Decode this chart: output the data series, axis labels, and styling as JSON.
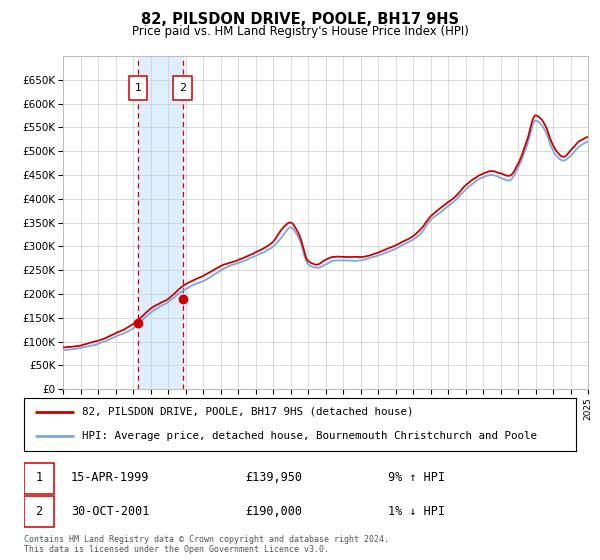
{
  "title": "82, PILSDON DRIVE, POOLE, BH17 9HS",
  "subtitle": "Price paid vs. HM Land Registry's House Price Index (HPI)",
  "legend_line1": "82, PILSDON DRIVE, POOLE, BH17 9HS (detached house)",
  "legend_line2": "HPI: Average price, detached house, Bournemouth Christchurch and Poole",
  "transaction1_date": "15-APR-1999",
  "transaction1_price": 139950,
  "transaction1_price_str": "£139,950",
  "transaction1_hpi": "9% ↑ HPI",
  "transaction2_date": "30-OCT-2001",
  "transaction2_price": 190000,
  "transaction2_price_str": "£190,000",
  "transaction2_hpi": "1% ↓ HPI",
  "copyright": "Contains HM Land Registry data © Crown copyright and database right 2024.\nThis data is licensed under the Open Government Licence v3.0.",
  "hpi_color": "#7aaadd",
  "price_color": "#cc0000",
  "shade_color": "#ddeeff",
  "grid_color": "#cccccc",
  "ylim_min": 0,
  "ylim_max": 700000,
  "ytick_labels": [
    "£0",
    "£50K",
    "£100K",
    "£150K",
    "£200K",
    "£250K",
    "£300K",
    "£350K",
    "£400K",
    "£450K",
    "£500K",
    "£550K",
    "£600K",
    "£650K"
  ],
  "ytick_values": [
    0,
    50000,
    100000,
    150000,
    200000,
    250000,
    300000,
    350000,
    400000,
    450000,
    500000,
    550000,
    600000,
    650000
  ],
  "start_year": 1995,
  "end_year": 2025,
  "transaction1_year": 1999.29,
  "transaction2_year": 2001.83,
  "key_years_hpi": [
    1995,
    1996,
    1997,
    1998,
    1999,
    2000,
    2001,
    2002,
    2003,
    2004,
    2005,
    2006,
    2007,
    2007.5,
    2008,
    2008.5,
    2009,
    2009.5,
    2010,
    2010.5,
    2011,
    2011.5,
    2012,
    2012.5,
    2013,
    2013.5,
    2014,
    2014.5,
    2015,
    2015.5,
    2016,
    2016.5,
    2017,
    2017.5,
    2018,
    2018.5,
    2019,
    2019.5,
    2020,
    2020.5,
    2021,
    2021.5,
    2022,
    2022.3,
    2022.6,
    2022.9,
    2023.2,
    2023.6,
    2024,
    2024.5,
    2025
  ],
  "key_prices_hpi": [
    82000,
    87000,
    96000,
    110000,
    128000,
    160000,
    183000,
    210000,
    228000,
    250000,
    265000,
    280000,
    300000,
    320000,
    340000,
    315000,
    262000,
    255000,
    262000,
    270000,
    270000,
    270000,
    272000,
    275000,
    280000,
    288000,
    295000,
    305000,
    315000,
    330000,
    355000,
    370000,
    385000,
    400000,
    420000,
    435000,
    445000,
    450000,
    445000,
    440000,
    465000,
    510000,
    565000,
    558000,
    540000,
    510000,
    490000,
    480000,
    490000,
    510000,
    520000
  ],
  "key_years_prop": [
    1995,
    1996,
    1997,
    1998,
    1999,
    2000,
    2001,
    2002,
    2003,
    2004,
    2005,
    2006,
    2007,
    2007.5,
    2008,
    2008.5,
    2009,
    2009.5,
    2010,
    2010.5,
    2011,
    2011.5,
    2012,
    2012.5,
    2013,
    2013.5,
    2014,
    2014.5,
    2015,
    2015.5,
    2016,
    2016.5,
    2017,
    2017.5,
    2018,
    2018.5,
    2019,
    2019.5,
    2020,
    2020.5,
    2021,
    2021.5,
    2022,
    2022.3,
    2022.6,
    2022.9,
    2023.2,
    2023.6,
    2024,
    2024.5,
    2025
  ],
  "key_prices_prop": [
    88000,
    93000,
    102000,
    118000,
    136000,
    168000,
    190000,
    220000,
    238000,
    258000,
    272000,
    288000,
    310000,
    335000,
    350000,
    325000,
    270000,
    262000,
    272000,
    278000,
    278000,
    278000,
    278000,
    281000,
    287000,
    295000,
    302000,
    312000,
    322000,
    338000,
    362000,
    378000,
    393000,
    408000,
    428000,
    443000,
    453000,
    458000,
    453000,
    448000,
    473000,
    520000,
    575000,
    568000,
    550000,
    520000,
    500000,
    488000,
    500000,
    520000,
    530000
  ]
}
